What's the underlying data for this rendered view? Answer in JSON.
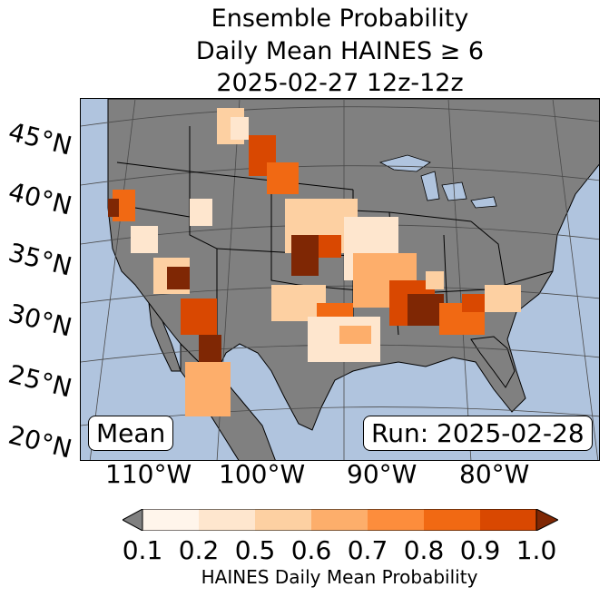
{
  "title": {
    "line1": "Ensemble Probability",
    "line2": "Daily Mean HAINES ≥ 6",
    "line3": "2025-02-27 12z-12z"
  },
  "map": {
    "latitude_labels": [
      "45°N",
      "40°N",
      "35°N",
      "30°N",
      "25°N",
      "20°N"
    ],
    "longitude_labels": [
      "110°W",
      "100°W",
      "90°W",
      "80°W"
    ],
    "stat_label": "Mean",
    "run_label": "Run: 2025-02-28",
    "colors": {
      "ocean": "#b0c4de",
      "land_no_data": "#808080",
      "borders": "#000000"
    }
  },
  "colorbar": {
    "label": "HAINES Daily Mean Probability",
    "ticks": [
      "0.1",
      "0.2",
      "0.5",
      "0.6",
      "0.7",
      "0.8",
      "0.9",
      "1.0"
    ],
    "under_color": "#808080",
    "over_color": "#7f2704",
    "colors": [
      "#fff5eb",
      "#fee6ce",
      "#fdd0a2",
      "#fdae6b",
      "#fd8d3c",
      "#f16913",
      "#d94801"
    ]
  }
}
